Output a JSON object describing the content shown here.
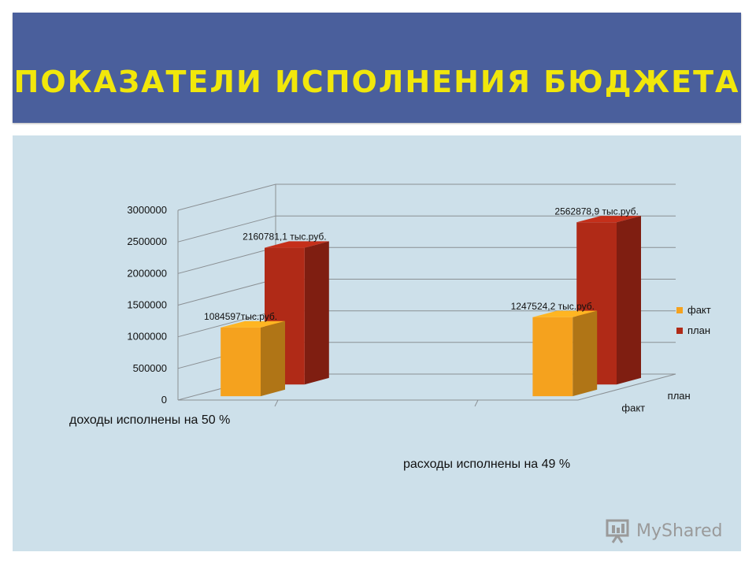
{
  "slide": {
    "title": "ПОКАЗАТЕЛИ ИСПОЛНЕНИЯ БЮДЖЕТА"
  },
  "captions": {
    "income": "доходы исполнены на 50 %",
    "expenses": "расходы исполнены на 49 %"
  },
  "watermark": {
    "text": "MyShared"
  },
  "chart_data": {
    "type": "bar",
    "title": "",
    "xlabel": "",
    "ylabel": "",
    "ylim": [
      0,
      3000000
    ],
    "yticks": [
      0,
      500000,
      1000000,
      1500000,
      2000000,
      2500000,
      3000000
    ],
    "depth_categories": [
      "факт",
      "план"
    ],
    "grid": true,
    "legend_position": "right",
    "series": [
      {
        "name": "факт",
        "color": "#f5a21e",
        "values": [
          1084597,
          1247524.2
        ],
        "labels": [
          "1084597тыс.руб.",
          "1247524,2 тыс.руб."
        ]
      },
      {
        "name": "план",
        "color": "#b02a17",
        "values": [
          2160781.1,
          2562878.9
        ],
        "labels": [
          "2160781,1 тыс.руб.",
          "2562878,9 тыс.руб."
        ]
      }
    ]
  }
}
